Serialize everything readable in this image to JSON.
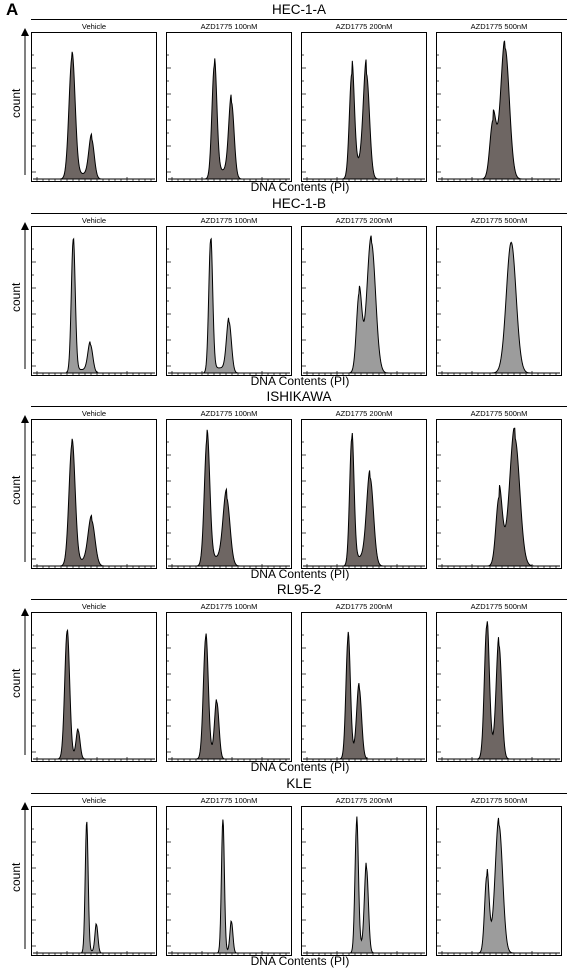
{
  "panel_label": "A",
  "y_axis_label": "count",
  "x_axis_label": "DNA Contents (PI)",
  "colors": {
    "dark_fill": "#6e6663",
    "light_fill": "#9c9c9c",
    "stroke": "#000000"
  },
  "chart_data": [
    {
      "type": "area",
      "title": "HEC-1-A",
      "fill": "dark",
      "conditions": [
        "Vehicle",
        "AZD1775 100nM",
        "AZD1775 200nM",
        "AZD1775 500nM"
      ],
      "series": [
        {
          "name": "Vehicle",
          "peaks": [
            {
              "x": 0.32,
              "height": 0.86,
              "width": 0.025
            },
            {
              "x": 0.48,
              "height": 0.28,
              "width": 0.022
            }
          ],
          "s_phase": 0.06
        },
        {
          "name": "AZD1775 100nM",
          "peaks": [
            {
              "x": 0.38,
              "height": 0.8,
              "width": 0.02
            },
            {
              "x": 0.52,
              "height": 0.54,
              "width": 0.022
            }
          ],
          "s_phase": 0.1
        },
        {
          "name": "AZD1775 200nM",
          "peaks": [
            {
              "x": 0.4,
              "height": 0.74,
              "width": 0.02
            },
            {
              "x": 0.52,
              "height": 0.74,
              "width": 0.025
            }
          ],
          "s_phase": 0.18
        },
        {
          "name": "AZD1775 500nM",
          "peaks": [
            {
              "x": 0.45,
              "height": 0.4,
              "width": 0.025
            },
            {
              "x": 0.55,
              "height": 0.92,
              "width": 0.035
            }
          ],
          "s_phase": 0.12
        }
      ]
    },
    {
      "type": "area",
      "title": "HEC-1-B",
      "fill": "light",
      "conditions": [
        "Vehicle",
        "AZD1775 100nM",
        "AZD1775 200nM",
        "AZD1775 500nM"
      ],
      "series": [
        {
          "name": "Vehicle",
          "peaks": [
            {
              "x": 0.33,
              "height": 0.94,
              "width": 0.016
            },
            {
              "x": 0.47,
              "height": 0.2,
              "width": 0.02
            }
          ],
          "s_phase": 0.04
        },
        {
          "name": "AZD1775 100nM",
          "peaks": [
            {
              "x": 0.35,
              "height": 0.94,
              "width": 0.016
            },
            {
              "x": 0.5,
              "height": 0.36,
              "width": 0.02
            }
          ],
          "s_phase": 0.06
        },
        {
          "name": "AZD1775 200nM",
          "peaks": [
            {
              "x": 0.46,
              "height": 0.55,
              "width": 0.022
            },
            {
              "x": 0.56,
              "height": 0.92,
              "width": 0.035
            }
          ],
          "s_phase": 0.08
        },
        {
          "name": "AZD1775 500nM",
          "peaks": [
            {
              "x": 0.6,
              "height": 0.92,
              "width": 0.04
            }
          ],
          "s_phase": 0.0
        }
      ]
    },
    {
      "type": "area",
      "title": "ISHIKAWA",
      "fill": "dark",
      "conditions": [
        "Vehicle",
        "AZD1775 100nM",
        "AZD1775 200nM",
        "AZD1775 500nM"
      ],
      "series": [
        {
          "name": "Vehicle",
          "peaks": [
            {
              "x": 0.32,
              "height": 0.86,
              "width": 0.025
            },
            {
              "x": 0.48,
              "height": 0.32,
              "width": 0.028
            }
          ],
          "s_phase": 0.06
        },
        {
          "name": "AZD1775 100nM",
          "peaks": [
            {
              "x": 0.32,
              "height": 0.9,
              "width": 0.022
            },
            {
              "x": 0.48,
              "height": 0.48,
              "width": 0.028
            }
          ],
          "s_phase": 0.1
        },
        {
          "name": "AZD1775 200nM",
          "peaks": [
            {
              "x": 0.4,
              "height": 0.9,
              "width": 0.018
            },
            {
              "x": 0.55,
              "height": 0.62,
              "width": 0.028
            }
          ],
          "s_phase": 0.1
        },
        {
          "name": "AZD1775 500nM",
          "peaks": [
            {
              "x": 0.5,
              "height": 0.48,
              "width": 0.025
            },
            {
              "x": 0.63,
              "height": 0.9,
              "width": 0.04
            }
          ],
          "s_phase": 0.15
        }
      ]
    },
    {
      "type": "area",
      "title": "RL95-2",
      "fill": "dark",
      "conditions": [
        "Vehicle",
        "AZD1775 100nM",
        "AZD1775 200nM",
        "AZD1775 500nM"
      ],
      "series": [
        {
          "name": "Vehicle",
          "peaks": [
            {
              "x": 0.28,
              "height": 0.9,
              "width": 0.02
            },
            {
              "x": 0.37,
              "height": 0.2,
              "width": 0.016
            }
          ],
          "s_phase": 0.03
        },
        {
          "name": "AZD1775 100nM",
          "peaks": [
            {
              "x": 0.31,
              "height": 0.86,
              "width": 0.02
            },
            {
              "x": 0.4,
              "height": 0.4,
              "width": 0.018
            }
          ],
          "s_phase": 0.05
        },
        {
          "name": "AZD1775 200nM",
          "peaks": [
            {
              "x": 0.37,
              "height": 0.86,
              "width": 0.018
            },
            {
              "x": 0.46,
              "height": 0.5,
              "width": 0.02
            }
          ],
          "s_phase": 0.06
        },
        {
          "name": "AZD1775 500nM",
          "peaks": [
            {
              "x": 0.4,
              "height": 0.94,
              "width": 0.02
            },
            {
              "x": 0.5,
              "height": 0.8,
              "width": 0.022
            }
          ],
          "s_phase": 0.12
        }
      ]
    },
    {
      "type": "area",
      "title": "KLE",
      "fill": "light",
      "conditions": [
        "Vehicle",
        "AZD1775 100nM",
        "AZD1775 200nM",
        "AZD1775 500nM"
      ],
      "series": [
        {
          "name": "Vehicle",
          "peaks": [
            {
              "x": 0.44,
              "height": 0.92,
              "width": 0.012
            },
            {
              "x": 0.52,
              "height": 0.2,
              "width": 0.012
            }
          ],
          "s_phase": 0.02
        },
        {
          "name": "AZD1775 100nM",
          "peaks": [
            {
              "x": 0.45,
              "height": 0.94,
              "width": 0.012
            },
            {
              "x": 0.52,
              "height": 0.22,
              "width": 0.012
            }
          ],
          "s_phase": 0.02
        },
        {
          "name": "AZD1775 200nM",
          "peaks": [
            {
              "x": 0.44,
              "height": 0.92,
              "width": 0.014
            },
            {
              "x": 0.52,
              "height": 0.6,
              "width": 0.016
            }
          ],
          "s_phase": 0.08
        },
        {
          "name": "AZD1775 500nM",
          "peaks": [
            {
              "x": 0.4,
              "height": 0.54,
              "width": 0.018
            },
            {
              "x": 0.5,
              "height": 0.9,
              "width": 0.03
            }
          ],
          "s_phase": 0.1
        }
      ]
    }
  ]
}
